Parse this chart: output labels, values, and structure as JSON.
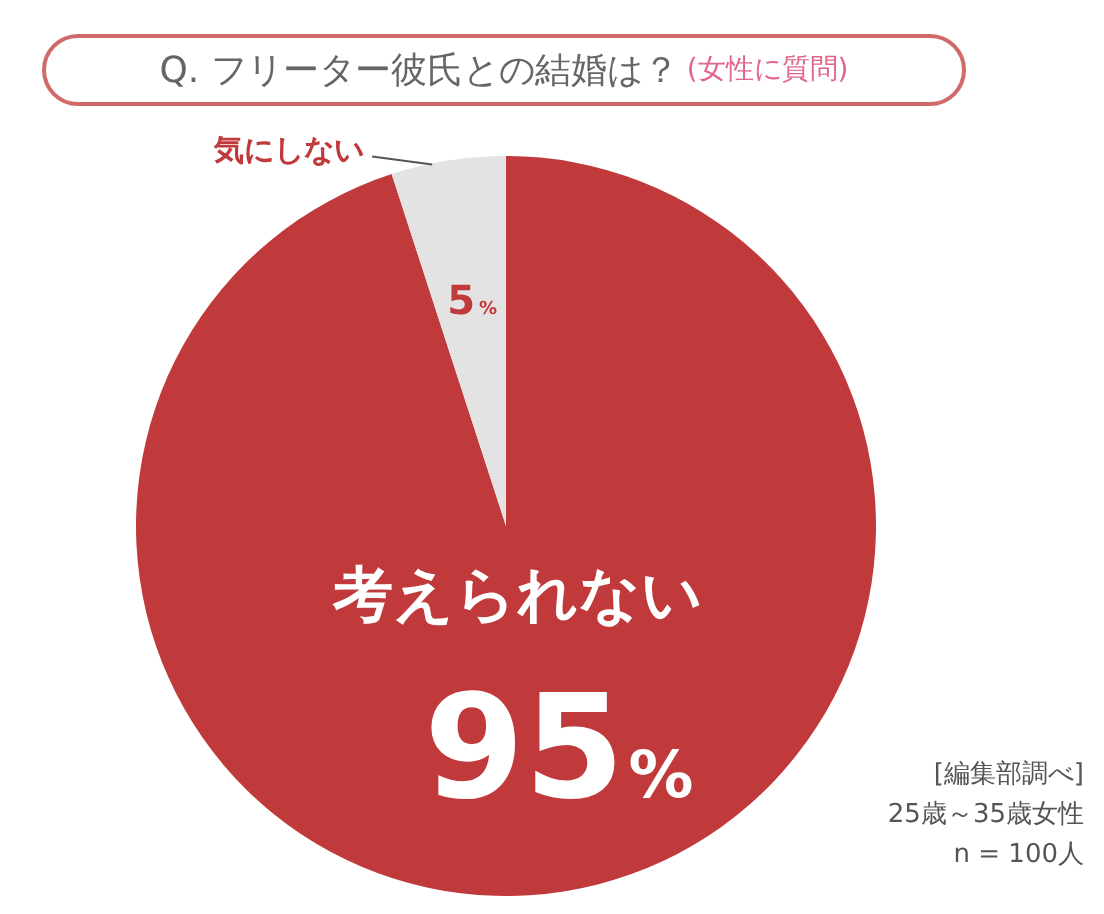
{
  "chart_data": {
    "type": "pie",
    "title": "Q. フリーター彼氏との結婚は？",
    "subtitle": "(女性に質問)",
    "categories": [
      "考えられない",
      "気にしない"
    ],
    "values": [
      95,
      5
    ],
    "colors": [
      "#c0393b",
      "#e3e3e3"
    ],
    "value_labels": [
      "95%",
      "5%"
    ],
    "legend": false,
    "annotations": [
      "[編集部調べ]",
      "25歳～35歳女性",
      "n = 100人"
    ]
  }
}
